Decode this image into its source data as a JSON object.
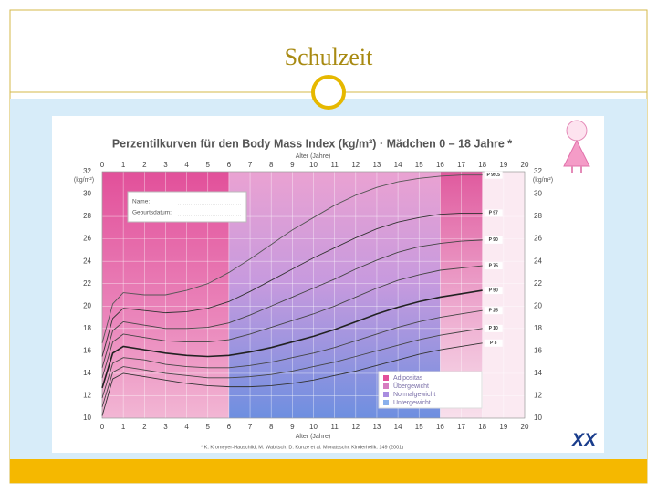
{
  "slide_title": "Schulzeit",
  "chart_data": {
    "type": "line",
    "title": "Perzentilkurven für den Body Mass Index (kg/m²) · Mädchen 0 – 18 Jahre *",
    "x_label": "Alter (Jahre)",
    "y_label": "(kg/m²)",
    "footnote": "* K. Kromeyer-Hauschild, M. Wabitsch, D. Kunze et al. Monatsschr. Kinderheilk. 149 (2001)",
    "form_fields": [
      "Name:",
      "Geburtsdatum:"
    ],
    "xlim": [
      0,
      20
    ],
    "ylim": [
      10,
      32
    ],
    "xticks": [
      0,
      1,
      2,
      3,
      4,
      5,
      6,
      7,
      8,
      9,
      10,
      11,
      12,
      13,
      14,
      15,
      16,
      17,
      18,
      19,
      20
    ],
    "yticks": [
      10,
      12,
      14,
      16,
      18,
      20,
      22,
      24,
      26,
      28,
      30,
      32
    ],
    "x": [
      0,
      0.5,
      1,
      2,
      3,
      4,
      5,
      6,
      7,
      8,
      9,
      10,
      11,
      12,
      13,
      14,
      15,
      16,
      17,
      18
    ],
    "series": [
      {
        "name": "P 99.5",
        "color": "#555555",
        "values": [
          16.7,
          20.2,
          21.2,
          21.0,
          21.0,
          21.4,
          22.0,
          23.0,
          24.2,
          25.5,
          26.8,
          27.9,
          29.0,
          29.9,
          30.6,
          31.1,
          31.4,
          31.6,
          31.7,
          31.7
        ]
      },
      {
        "name": "P 97",
        "color": "#333333",
        "values": [
          15.5,
          18.9,
          19.8,
          19.6,
          19.4,
          19.5,
          19.8,
          20.4,
          21.3,
          22.3,
          23.3,
          24.3,
          25.2,
          26.1,
          26.9,
          27.5,
          27.9,
          28.2,
          28.3,
          28.3
        ]
      },
      {
        "name": "P 90",
        "color": "#444444",
        "values": [
          14.5,
          17.8,
          18.6,
          18.3,
          18.0,
          18.0,
          18.1,
          18.5,
          19.2,
          20.0,
          20.8,
          21.6,
          22.4,
          23.3,
          24.1,
          24.8,
          25.3,
          25.6,
          25.8,
          25.9
        ]
      },
      {
        "name": "P 75",
        "color": "#444444",
        "values": [
          13.6,
          16.8,
          17.5,
          17.2,
          16.9,
          16.8,
          16.8,
          17.0,
          17.5,
          18.1,
          18.7,
          19.3,
          20.0,
          20.8,
          21.6,
          22.3,
          22.8,
          23.2,
          23.4,
          23.6
        ]
      },
      {
        "name": "P 50",
        "color": "#222222",
        "values": [
          12.7,
          15.8,
          16.4,
          16.1,
          15.8,
          15.6,
          15.5,
          15.6,
          15.9,
          16.3,
          16.8,
          17.3,
          17.9,
          18.6,
          19.3,
          19.9,
          20.4,
          20.8,
          21.1,
          21.4
        ]
      },
      {
        "name": "P 25",
        "color": "#444444",
        "values": [
          11.8,
          14.9,
          15.4,
          15.2,
          14.8,
          14.6,
          14.5,
          14.5,
          14.7,
          15.0,
          15.4,
          15.8,
          16.3,
          16.9,
          17.5,
          18.1,
          18.6,
          19.0,
          19.3,
          19.6
        ]
      },
      {
        "name": "P 10",
        "color": "#444444",
        "values": [
          11.0,
          14.1,
          14.6,
          14.3,
          14.0,
          13.8,
          13.6,
          13.6,
          13.7,
          13.9,
          14.2,
          14.6,
          15.0,
          15.5,
          16.0,
          16.5,
          17.0,
          17.4,
          17.7,
          18.0
        ]
      },
      {
        "name": "P 3",
        "color": "#333333",
        "values": [
          10.2,
          13.5,
          14.0,
          13.7,
          13.4,
          13.1,
          12.9,
          12.8,
          12.8,
          12.9,
          13.1,
          13.4,
          13.8,
          14.2,
          14.7,
          15.2,
          15.7,
          16.1,
          16.4,
          16.7
        ]
      }
    ],
    "legend": [
      {
        "label": "Adipositas",
        "color": "#e3509a"
      },
      {
        "label": "Übergewicht",
        "color": "#d67cc0"
      },
      {
        "label": "Normalgewicht",
        "color": "#a98de0"
      },
      {
        "label": "Untergewicht",
        "color": "#8ab0ec"
      }
    ]
  }
}
